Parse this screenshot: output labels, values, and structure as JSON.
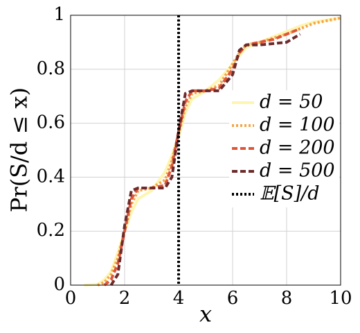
{
  "chart_data": {
    "type": "line",
    "xlabel": "x",
    "ylabel": "Pr(S/d ≤ x)",
    "x": [
      0.5,
      1,
      1.25,
      1.5,
      1.75,
      2,
      2.25,
      2.5,
      3,
      3.5,
      3.75,
      4,
      4.25,
      4.5,
      5,
      5.5,
      6,
      6.25,
      6.5,
      7,
      7.5,
      8,
      8.5,
      9,
      10
    ],
    "series": [
      {
        "name": "d = 50",
        "color": "#fdf5b0",
        "style": "solid",
        "values": [
          0,
          0.003,
          0.02,
          0.05,
          0.12,
          0.2,
          0.27,
          0.32,
          0.35,
          0.42,
          0.48,
          0.55,
          0.64,
          0.69,
          0.72,
          0.76,
          0.82,
          0.85,
          0.88,
          0.9,
          0.92,
          0.94,
          0.96,
          0.975,
          0.99
        ]
      },
      {
        "name": "d = 100",
        "color": "#f5a447",
        "style": "dotted",
        "values": [
          null,
          0,
          0.01,
          0.04,
          0.1,
          0.2,
          0.3,
          0.35,
          0.36,
          0.39,
          0.46,
          0.56,
          0.66,
          0.71,
          0.72,
          0.74,
          0.82,
          0.86,
          0.89,
          0.9,
          0.915,
          0.93,
          0.95,
          0.97,
          0.99
        ]
      },
      {
        "name": "d = 200",
        "color": "#df5538",
        "style": "dashed",
        "values": [
          null,
          null,
          0,
          0.02,
          0.08,
          0.2,
          0.32,
          0.36,
          0.36,
          0.37,
          0.44,
          0.57,
          0.68,
          0.72,
          0.72,
          0.73,
          0.8,
          0.86,
          0.89,
          0.9,
          0.91,
          0.93,
          0.95,
          null,
          null
        ]
      },
      {
        "name": "d = 500",
        "color": "#6e2b2b",
        "style": "dashed",
        "values": [
          null,
          null,
          null,
          0,
          0.04,
          0.22,
          0.35,
          0.36,
          0.36,
          0.36,
          0.4,
          0.57,
          0.71,
          0.72,
          0.72,
          0.72,
          0.78,
          0.87,
          0.89,
          0.89,
          0.895,
          0.9,
          0.93,
          null,
          null
        ]
      }
    ],
    "vline": {
      "name": "𝔼[S]/d",
      "x": 4,
      "color": "#000000",
      "style": "dotted"
    },
    "xlim": [
      0,
      10
    ],
    "ylim": [
      0,
      1
    ],
    "xticks": [
      0,
      2,
      4,
      6,
      8,
      10
    ],
    "yticks": [
      0,
      0.2,
      0.4,
      0.6,
      0.8,
      1
    ],
    "grid": true,
    "legend": "right"
  }
}
